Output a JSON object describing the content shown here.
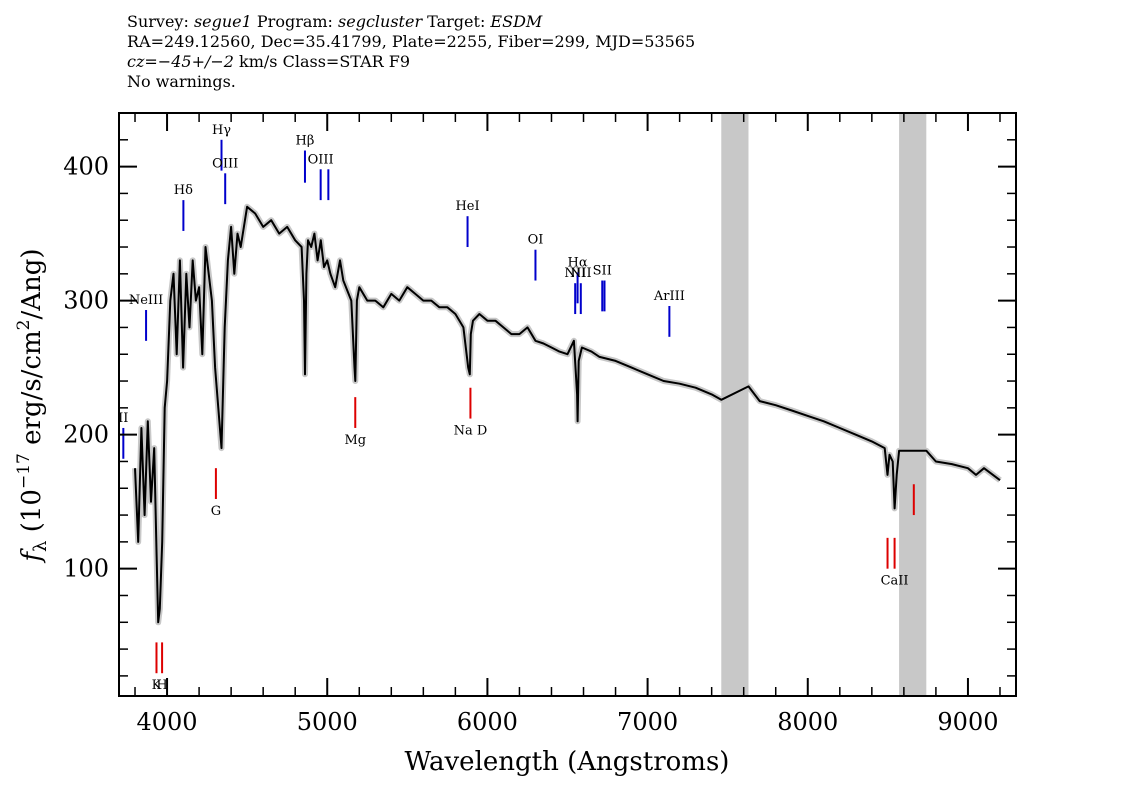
{
  "header": {
    "line1_parts": [
      "Survey: ",
      "segue1",
      " Program: ",
      "segcluster",
      " Target: ",
      "ESDM"
    ],
    "line2": "RA=249.12560, Dec=35.41799, Plate=2255, Fiber=299, MJD=53565",
    "line3_parts": [
      "cz=",
      "−45+/−2",
      " km/s Class=STAR F9"
    ],
    "line4": "No warnings."
  },
  "colors": {
    "spectrum": "#000000",
    "error_band": "#c8c8c8",
    "masked_region": "#c8c8c8",
    "emission_line": "#0000cc",
    "absorption_line": "#dd0000"
  },
  "chart_data": {
    "type": "line",
    "xlabel": "Wavelength (Angstroms)",
    "ylabel": "f_λ (10^-17 erg/s/cm^2/Ang)",
    "xlim": [
      3700,
      9300
    ],
    "ylim": [
      5,
      440
    ],
    "x_ticks": [
      4000,
      5000,
      6000,
      7000,
      8000,
      9000
    ],
    "y_ticks": [
      100,
      200,
      300,
      400
    ],
    "masked_regions": [
      [
        7460,
        7630
      ],
      [
        8570,
        8740
      ]
    ],
    "spectrum": {
      "x": [
        3800,
        3820,
        3840,
        3860,
        3880,
        3900,
        3920,
        3935,
        3945,
        3955,
        3970,
        3985,
        4000,
        4020,
        4040,
        4060,
        4080,
        4100,
        4120,
        4140,
        4160,
        4180,
        4200,
        4220,
        4240,
        4260,
        4280,
        4300,
        4320,
        4340,
        4360,
        4380,
        4400,
        4420,
        4440,
        4460,
        4480,
        4500,
        4550,
        4600,
        4650,
        4700,
        4750,
        4800,
        4840,
        4855,
        4861,
        4870,
        4880,
        4900,
        4920,
        4940,
        4960,
        4980,
        5000,
        5020,
        5050,
        5080,
        5100,
        5150,
        5170,
        5175,
        5185,
        5200,
        5250,
        5300,
        5350,
        5400,
        5450,
        5500,
        5550,
        5600,
        5650,
        5700,
        5750,
        5800,
        5850,
        5880,
        5890,
        5896,
        5910,
        5950,
        6000,
        6050,
        6100,
        6150,
        6200,
        6250,
        6300,
        6350,
        6400,
        6450,
        6500,
        6540,
        6560,
        6563,
        6570,
        6590,
        6650,
        6700,
        6800,
        6900,
        7000,
        7100,
        7200,
        7300,
        7400,
        7460,
        7630,
        7700,
        7800,
        7900,
        8000,
        8100,
        8200,
        8300,
        8400,
        8480,
        8498,
        8510,
        8530,
        8542,
        8555,
        8570,
        8740,
        8800,
        8900,
        9000,
        9050,
        9100,
        9200
      ],
      "y": [
        175,
        120,
        205,
        140,
        210,
        150,
        190,
        110,
        60,
        70,
        120,
        220,
        240,
        300,
        320,
        260,
        330,
        250,
        320,
        280,
        330,
        300,
        310,
        260,
        340,
        320,
        300,
        250,
        220,
        190,
        280,
        330,
        355,
        320,
        350,
        340,
        355,
        370,
        365,
        355,
        360,
        350,
        355,
        345,
        340,
        300,
        245,
        320,
        345,
        340,
        350,
        330,
        345,
        325,
        330,
        320,
        310,
        330,
        315,
        300,
        250,
        240,
        300,
        310,
        300,
        300,
        295,
        305,
        300,
        310,
        305,
        300,
        300,
        295,
        295,
        290,
        280,
        250,
        245,
        275,
        285,
        290,
        285,
        285,
        280,
        275,
        275,
        280,
        270,
        268,
        265,
        262,
        260,
        270,
        230,
        210,
        255,
        265,
        262,
        258,
        255,
        250,
        245,
        240,
        238,
        235,
        230,
        226,
        236,
        225,
        222,
        218,
        214,
        210,
        205,
        200,
        195,
        190,
        170,
        185,
        180,
        145,
        170,
        188,
        188,
        180,
        178,
        175,
        170,
        175,
        166
      ]
    },
    "line_markers": [
      {
        "label": "NeIII",
        "kind": "emission",
        "x": 3869,
        "y_bottom": 270,
        "y_top": 293
      },
      {
        "label": "Hδ",
        "kind": "emission",
        "x": 4102,
        "y_bottom": 352,
        "y_top": 375
      },
      {
        "label": "Hγ",
        "kind": "emission",
        "x": 4340,
        "y_bottom": 397,
        "y_top": 420
      },
      {
        "label": "OIII",
        "kind": "emission",
        "x": 4363,
        "y_bottom": 372,
        "y_top": 395
      },
      {
        "label": "Hβ",
        "kind": "emission",
        "x": 4861,
        "y_bottom": 388,
        "y_top": 412
      },
      {
        "label": "OIII",
        "kind": "emission",
        "x": 4959,
        "y_bottom": 375,
        "y_top": 398
      },
      {
        "label": "",
        "kind": "emission",
        "x": 5007,
        "y_bottom": 375,
        "y_top": 398
      },
      {
        "label": "HeI",
        "kind": "emission",
        "x": 5876,
        "y_bottom": 340,
        "y_top": 363
      },
      {
        "label": "OI",
        "kind": "emission",
        "x": 6300,
        "y_bottom": 315,
        "y_top": 338
      },
      {
        "label": "NII",
        "kind": "emission",
        "x": 6548,
        "y_bottom": 290,
        "y_top": 313
      },
      {
        "label": "Hα",
        "kind": "emission",
        "x": 6563,
        "y_bottom": 298,
        "y_top": 321
      },
      {
        "label": "NII",
        "kind": "emission",
        "x": 6583,
        "y_bottom": 290,
        "y_top": 313
      },
      {
        "label": "SII",
        "kind": "emission",
        "x": 6717,
        "y_bottom": 292,
        "y_top": 315
      },
      {
        "label": "",
        "kind": "emission",
        "x": 6731,
        "y_bottom": 292,
        "y_top": 315
      },
      {
        "label": "ArIII",
        "kind": "emission",
        "x": 7136,
        "y_bottom": 273,
        "y_top": 296
      },
      {
        "label": "II",
        "kind": "emission",
        "x": 3727,
        "y_bottom": 182,
        "y_top": 205
      },
      {
        "label": "K",
        "kind": "absorption",
        "x": 3934,
        "y_bottom": 22,
        "y_top": 45
      },
      {
        "label": "H",
        "kind": "absorption",
        "x": 3969,
        "y_bottom": 22,
        "y_top": 45
      },
      {
        "label": "G",
        "kind": "absorption",
        "x": 4305,
        "y_bottom": 152,
        "y_top": 175
      },
      {
        "label": "Mg",
        "kind": "absorption",
        "x": 5175,
        "y_bottom": 205,
        "y_top": 228
      },
      {
        "label": "Na D",
        "kind": "absorption",
        "x": 5894,
        "y_bottom": 212,
        "y_top": 235
      },
      {
        "label": "",
        "kind": "absorption",
        "x": 8498,
        "y_bottom": 100,
        "y_top": 123
      },
      {
        "label": "CaII",
        "kind": "absorption",
        "x": 8542,
        "y_bottom": 100,
        "y_top": 123
      },
      {
        "label": "",
        "kind": "absorption",
        "x": 8662,
        "y_bottom": 140,
        "y_top": 163
      }
    ]
  }
}
